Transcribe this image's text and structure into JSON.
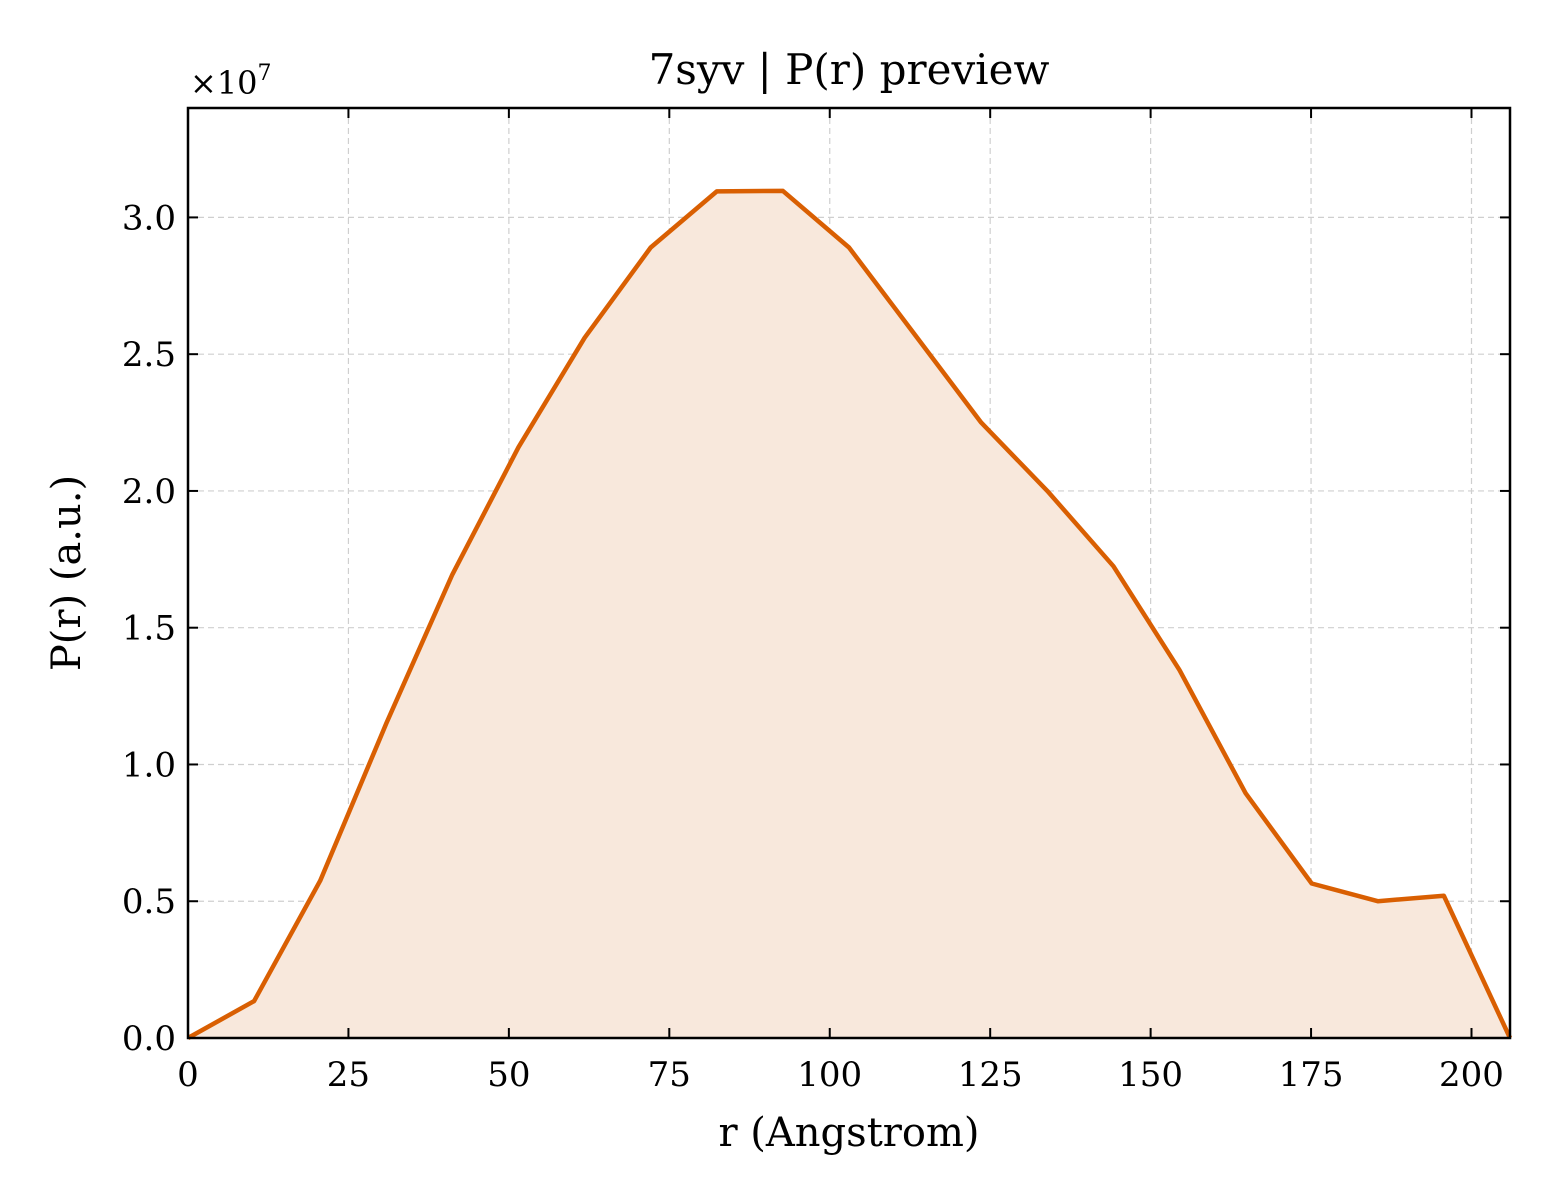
{
  "chart_data": {
    "type": "area",
    "title": "7syv | P(r) preview",
    "xlabel": "r (Angstrom)",
    "ylabel": "P(r) (a.u.)",
    "y_offset_text": "×10",
    "y_offset_exponent": "7",
    "xlim": [
      0,
      206
    ],
    "ylim": [
      0,
      3.4
    ],
    "x_ticks": [
      0,
      25,
      50,
      75,
      100,
      125,
      150,
      175,
      200
    ],
    "y_ticks": [
      0.0,
      0.5,
      1.0,
      1.5,
      2.0,
      2.5,
      3.0
    ],
    "x_tick_labels": [
      "0",
      "25",
      "50",
      "75",
      "100",
      "125",
      "150",
      "175",
      "200"
    ],
    "y_tick_labels": [
      "0.0",
      "0.5",
      "1.0",
      "1.5",
      "2.0",
      "2.5",
      "3.0"
    ],
    "grid": true,
    "colors": {
      "line": "#d95f02",
      "fill": "#f8e8dc"
    },
    "series": [
      {
        "x": [
          0,
          10.3,
          20.6,
          30.9,
          41.2,
          51.5,
          61.8,
          72.1,
          82.4,
          92.7,
          103.0,
          113.3,
          123.6,
          133.9,
          144.2,
          154.5,
          164.8,
          175.1,
          185.4,
          195.7,
          206.0
        ],
        "y": [
          0.0,
          0.135,
          0.575,
          1.15,
          1.695,
          2.16,
          2.56,
          2.89,
          3.095,
          3.097,
          2.89,
          2.57,
          2.25,
          2.0,
          1.725,
          1.345,
          0.895,
          0.565,
          0.5,
          0.52,
          0.0
        ]
      }
    ]
  }
}
